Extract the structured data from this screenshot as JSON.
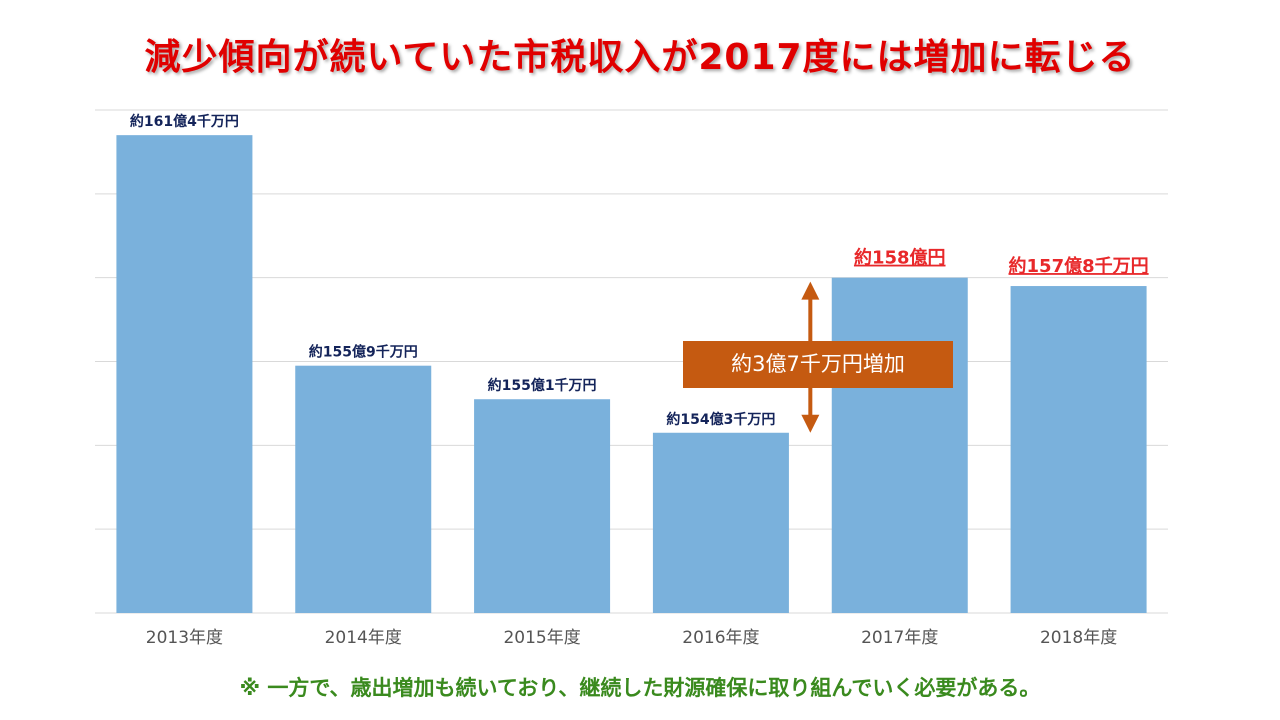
{
  "title": "減少傾向が続いていた市税収入が2017度には増加に転じる",
  "footnote": "※ 一方で、歳出増加も続いており、継続した財源確保に取り組んでいく必要がある。",
  "callout": "約3億7千万円増加",
  "colors": {
    "title": "#e00000",
    "bar": "#7ab1dc",
    "label_normal": "#14245a",
    "label_highlight": "#e8282a",
    "callout_bg": "#c55a11",
    "arrow": "#c55a11",
    "grid": "#d9d9d9",
    "axis_label": "#555555",
    "footnote": "#3a8a1e"
  },
  "chart_data": {
    "type": "bar",
    "categories": [
      "2013年度",
      "2014年度",
      "2015年度",
      "2016年度",
      "2017年度",
      "2018年度"
    ],
    "values": [
      161.4,
      155.9,
      155.1,
      154.3,
      158.0,
      157.8
    ],
    "data_labels": [
      "約161億4千万円",
      "約155億9千万円",
      "約155億1千万円",
      "約154億3千万円",
      "約158億円",
      "約157億8千万円"
    ],
    "highlighted": [
      false,
      false,
      false,
      false,
      true,
      true
    ],
    "ylim": [
      150,
      162
    ],
    "grid": true,
    "units": "億円"
  }
}
